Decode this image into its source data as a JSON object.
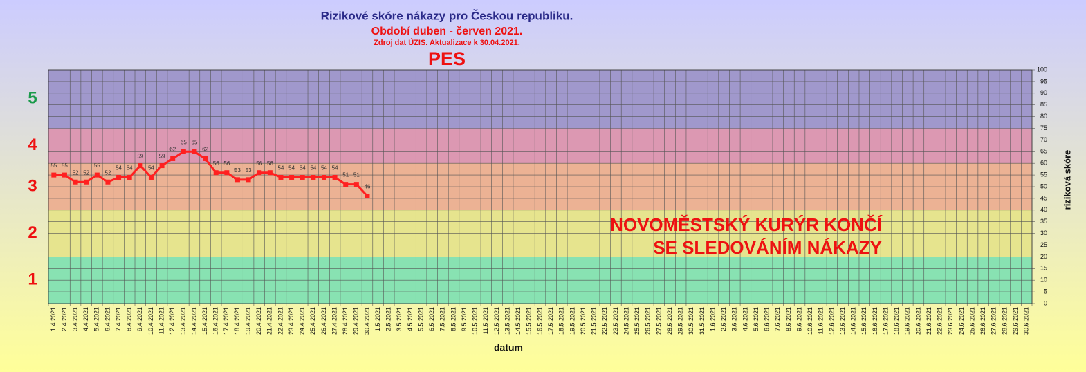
{
  "chart_data": {
    "type": "line",
    "title": "Rizikové skóre nákazy pro Českou republiku.",
    "subtitle": "Období duben - červen 2021.",
    "source": "Zdroj dat  ÚZIS. Aktualizace k 30.04.2021.",
    "heading": "PES",
    "annotation": [
      "NOVOMĚSTSKÝ KURÝR KONČÍ",
      "SE SLEDOVÁNÍM NÁKAZY"
    ],
    "xlabel": "datum",
    "ylabel": "riziková skóre",
    "categories": [
      "1.4.2021",
      "2.4.2021",
      "3.4.2021",
      "4.4.2021",
      "5.4.2021",
      "6.4.2021",
      "7.4.2021",
      "8.4.2021",
      "9.4.2021",
      "10.4.2021",
      "11.4.2021",
      "12.4.2021",
      "13.4.2021",
      "14.4.2021",
      "15.4.2021",
      "16.4.2021",
      "17.4.2021",
      "18.4.2021",
      "19.4.2021",
      "20.4.2021",
      "21.4.2021",
      "22.4.2021",
      "23.4.2021",
      "24.4.2021",
      "25.4.2021",
      "26.4.2021",
      "27.4.2021",
      "28.4.2021",
      "29.4.2021",
      "30.4.2021",
      "1.5.2021",
      "2.5.2021",
      "3.5.2021",
      "4.5.2021",
      "5.5.2021",
      "6.5.2021",
      "7.5.2021",
      "8.5.2021",
      "9.5.2021",
      "10.5.2021",
      "11.5.2021",
      "12.5.2021",
      "13.5.2021",
      "14.5.2021",
      "15.5.2021",
      "16.5.2021",
      "17.5.2021",
      "18.5.2021",
      "19.5.2021",
      "20.5.2021",
      "21.5.2021",
      "22.5.2021",
      "23.5.2021",
      "24.5.2021",
      "25.5.2021",
      "26.5.2021",
      "27.5.2021",
      "28.5.2021",
      "29.5.2021",
      "30.5.2021",
      "31.5.2021",
      "1.6.2021",
      "2.6.2021",
      "3.6.2021",
      "4.6.2021",
      "5.6.2021",
      "6.6.2021",
      "7.6.2021",
      "8.6.2021",
      "9.6.2021",
      "10.6.2021",
      "11.6.2021",
      "12.6.2021",
      "13.6.2021",
      "14.6.2021",
      "15.6.2021",
      "16.6.2021",
      "17.6.2021",
      "18.6.2021",
      "19.6.2021",
      "20.6.2021",
      "21.6.2021",
      "22.6.2021",
      "23.6.2021",
      "24.6.2021",
      "25.6.2021",
      "26.6.2021",
      "27.6.2021",
      "28.6.2021",
      "29.6.2021",
      "30.6.2021"
    ],
    "series": [
      {
        "color": "#ff2020",
        "values": [
          55,
          55,
          52,
          52,
          55,
          52,
          54,
          54,
          59,
          54,
          59,
          62,
          65,
          65,
          62,
          56,
          56,
          53,
          53,
          56,
          56,
          54,
          54,
          54,
          54,
          54,
          54,
          51,
          51,
          46,
          null,
          null,
          null,
          null,
          null,
          null,
          null,
          null,
          null,
          null,
          null,
          null,
          null,
          null,
          null,
          null,
          null,
          null,
          null,
          null,
          null,
          null,
          null,
          null,
          null,
          null,
          null,
          null,
          null,
          null,
          null,
          null,
          null,
          null,
          null,
          null,
          null,
          null,
          null,
          null,
          null,
          null,
          null,
          null,
          null,
          null,
          null,
          null,
          null,
          null,
          null,
          null,
          null,
          null,
          null,
          null,
          null,
          null,
          null,
          null,
          null
        ]
      }
    ],
    "bands": [
      {
        "from": 0,
        "to": 20,
        "label": "1",
        "color": "#88e2b2",
        "label_color": "#ee1111"
      },
      {
        "from": 20,
        "to": 40,
        "label": "2",
        "color": "#e6e48e",
        "label_color": "#ee1111"
      },
      {
        "from": 40,
        "to": 60,
        "label": "3",
        "color": "#ecb294",
        "label_color": "#ee1111"
      },
      {
        "from": 60,
        "to": 75,
        "label": "4",
        "color": "#dc98b2",
        "label_color": "#ee1111"
      },
      {
        "from": 75,
        "to": 100,
        "label": "5",
        "color": "#a098cc",
        "label_color": "#1a9a4a"
      }
    ],
    "ylim": [
      0,
      100
    ],
    "yticks": [
      0,
      5,
      10,
      15,
      20,
      25,
      30,
      35,
      40,
      45,
      50,
      55,
      60,
      65,
      70,
      75,
      80,
      85,
      90,
      95,
      100
    ],
    "grid": true
  }
}
